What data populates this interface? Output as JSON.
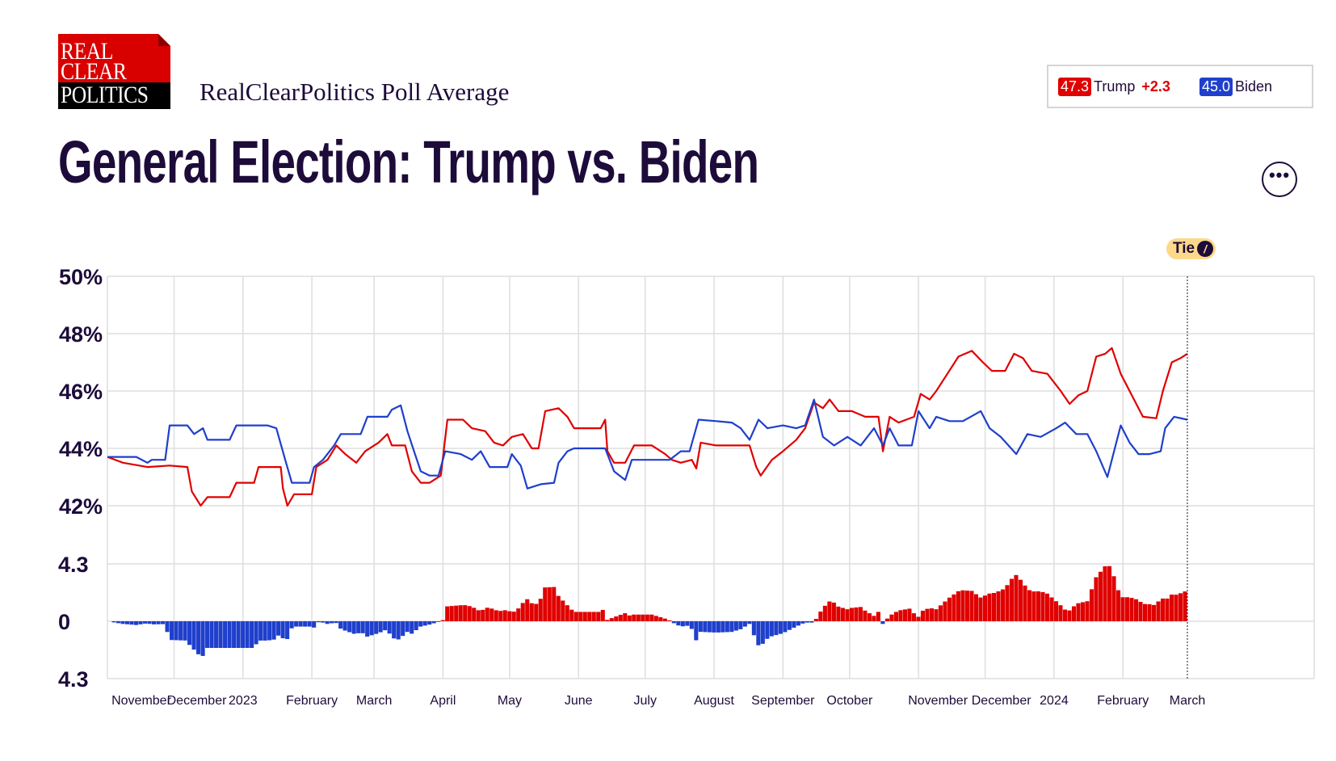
{
  "header": {
    "logo_text": [
      "REAL",
      "CLEAR",
      "POLITICS"
    ],
    "subtitle": "RealClearPolitics Poll Average",
    "title": "General Election: Trump vs. Biden",
    "more_label": "•••",
    "more_icon": "ellipsis-icon"
  },
  "legend": {
    "trump": {
      "value": "47.3",
      "name": "Trump",
      "change": "+2.3",
      "color": "#e00000"
    },
    "biden": {
      "value": "45.0",
      "name": "Biden",
      "color": "#1f3fcc"
    }
  },
  "tie_badge": {
    "label": "Tie",
    "icon": "slash-icon",
    "icon_glyph": "/"
  },
  "chart_data": {
    "type": "line",
    "title": "General Election: Trump vs. Biden",
    "x_unit": "days since 2022-11-01",
    "xlim": [
      0,
      486
    ],
    "ylim": [
      42,
      50
    ],
    "yticks": [
      "50%",
      "48%",
      "46%",
      "44%",
      "42%"
    ],
    "spread_ticks": [
      "4.3",
      "0",
      "4.3"
    ],
    "spread_max": 4.3,
    "grid": true,
    "xticks": [
      {
        "day": 0,
        "label": "November"
      },
      {
        "day": 30,
        "label": "December"
      },
      {
        "day": 61,
        "label": "2023"
      },
      {
        "day": 92,
        "label": "February"
      },
      {
        "day": 120,
        "label": "March"
      },
      {
        "day": 151,
        "label": "April"
      },
      {
        "day": 181,
        "label": "May"
      },
      {
        "day": 212,
        "label": "June"
      },
      {
        "day": 242,
        "label": "July"
      },
      {
        "day": 273,
        "label": "August"
      },
      {
        "day": 304,
        "label": "September"
      },
      {
        "day": 334,
        "label": "October"
      },
      {
        "day": 365,
        "label": "November"
      },
      {
        "day": 395,
        "label": "December"
      },
      {
        "day": 426,
        "label": "2024"
      },
      {
        "day": 457,
        "label": "February"
      },
      {
        "day": 486,
        "label": "March"
      }
    ],
    "series": [
      {
        "name": "Trump",
        "color": "#e00000",
        "points": [
          [
            0,
            43.7
          ],
          [
            7,
            43.5
          ],
          [
            18,
            43.35
          ],
          [
            28,
            43.4
          ],
          [
            36,
            43.35
          ],
          [
            38,
            42.5
          ],
          [
            42,
            42.0
          ],
          [
            45,
            42.3
          ],
          [
            55,
            42.3
          ],
          [
            58,
            42.8
          ],
          [
            66,
            42.8
          ],
          [
            68,
            43.35
          ],
          [
            78,
            43.35
          ],
          [
            79,
            42.6
          ],
          [
            81,
            42.0
          ],
          [
            84,
            42.4
          ],
          [
            92,
            42.4
          ],
          [
            94,
            43.35
          ],
          [
            99,
            43.6
          ],
          [
            103,
            44.1
          ],
          [
            107,
            43.8
          ],
          [
            112,
            43.5
          ],
          [
            116,
            43.9
          ],
          [
            122,
            44.2
          ],
          [
            126,
            44.5
          ],
          [
            128,
            44.1
          ],
          [
            134,
            44.1
          ],
          [
            137,
            43.2
          ],
          [
            141,
            42.8
          ],
          [
            145,
            42.8
          ],
          [
            150,
            43.05
          ],
          [
            153,
            45.0
          ],
          [
            160,
            45.0
          ],
          [
            164,
            44.7
          ],
          [
            170,
            44.6
          ],
          [
            174,
            44.2
          ],
          [
            178,
            44.1
          ],
          [
            182,
            44.4
          ],
          [
            187,
            44.5
          ],
          [
            191,
            44.0
          ],
          [
            194,
            44.0
          ],
          [
            197,
            45.3
          ],
          [
            203,
            45.4
          ],
          [
            207,
            45.1
          ],
          [
            210,
            44.7
          ],
          [
            222,
            44.7
          ],
          [
            224,
            45.0
          ],
          [
            225,
            43.9
          ],
          [
            228,
            43.5
          ],
          [
            233,
            43.5
          ],
          [
            237,
            44.1
          ],
          [
            245,
            44.1
          ],
          [
            251,
            43.8
          ],
          [
            254,
            43.6
          ],
          [
            258,
            43.5
          ],
          [
            263,
            43.6
          ],
          [
            265,
            43.3
          ],
          [
            267,
            44.2
          ],
          [
            274,
            44.1
          ],
          [
            289,
            44.1
          ],
          [
            292,
            43.35
          ],
          [
            294,
            43.05
          ],
          [
            299,
            43.6
          ],
          [
            304,
            43.9
          ],
          [
            310,
            44.3
          ],
          [
            314,
            44.7
          ],
          [
            318,
            45.6
          ],
          [
            322,
            45.4
          ],
          [
            325,
            45.7
          ],
          [
            329,
            45.3
          ],
          [
            335,
            45.3
          ],
          [
            341,
            45.1
          ],
          [
            347,
            45.1
          ],
          [
            349,
            43.9
          ],
          [
            352,
            45.1
          ],
          [
            356,
            44.9
          ],
          [
            363,
            45.1
          ],
          [
            366,
            45.9
          ],
          [
            370,
            45.7
          ],
          [
            373,
            46.0
          ],
          [
            378,
            46.6
          ],
          [
            383,
            47.2
          ],
          [
            389,
            47.4
          ],
          [
            394,
            47.0
          ],
          [
            398,
            46.7
          ],
          [
            404,
            46.7
          ],
          [
            408,
            47.3
          ],
          [
            412,
            47.15
          ],
          [
            416,
            46.7
          ],
          [
            423,
            46.6
          ],
          [
            429,
            46.0
          ],
          [
            433,
            45.55
          ],
          [
            437,
            45.85
          ],
          [
            441,
            46.0
          ],
          [
            445,
            47.2
          ],
          [
            449,
            47.3
          ],
          [
            452,
            47.5
          ],
          [
            456,
            46.6
          ],
          [
            461,
            45.85
          ],
          [
            466,
            45.1
          ],
          [
            472,
            45.05
          ],
          [
            475,
            46.0
          ],
          [
            479,
            47.0
          ],
          [
            483,
            47.15
          ],
          [
            486,
            47.3
          ]
        ]
      },
      {
        "name": "Biden",
        "color": "#1f3fcc",
        "points": [
          [
            0,
            43.7
          ],
          [
            13,
            43.7
          ],
          [
            18,
            43.5
          ],
          [
            20,
            43.6
          ],
          [
            26,
            43.6
          ],
          [
            28,
            44.8
          ],
          [
            36,
            44.8
          ],
          [
            39,
            44.5
          ],
          [
            43,
            44.7
          ],
          [
            45,
            44.3
          ],
          [
            55,
            44.3
          ],
          [
            58,
            44.8
          ],
          [
            72,
            44.8
          ],
          [
            76,
            44.7
          ],
          [
            80,
            43.6
          ],
          [
            83,
            42.8
          ],
          [
            91,
            42.8
          ],
          [
            93,
            43.35
          ],
          [
            97,
            43.6
          ],
          [
            102,
            44.1
          ],
          [
            105,
            44.5
          ],
          [
            114,
            44.5
          ],
          [
            117,
            45.1
          ],
          [
            126,
            45.1
          ],
          [
            128,
            45.35
          ],
          [
            132,
            45.5
          ],
          [
            135,
            44.6
          ],
          [
            138,
            43.9
          ],
          [
            141,
            43.2
          ],
          [
            145,
            43.05
          ],
          [
            149,
            43.05
          ],
          [
            152,
            43.9
          ],
          [
            159,
            43.8
          ],
          [
            164,
            43.6
          ],
          [
            168,
            43.9
          ],
          [
            172,
            43.35
          ],
          [
            180,
            43.35
          ],
          [
            182,
            43.8
          ],
          [
            186,
            43.4
          ],
          [
            189,
            42.6
          ],
          [
            195,
            42.75
          ],
          [
            201,
            42.8
          ],
          [
            203,
            43.5
          ],
          [
            207,
            43.9
          ],
          [
            210,
            44.0
          ],
          [
            224,
            44.0
          ],
          [
            228,
            43.2
          ],
          [
            233,
            42.9
          ],
          [
            236,
            43.6
          ],
          [
            243,
            43.6
          ],
          [
            253,
            43.6
          ],
          [
            258,
            43.9
          ],
          [
            262,
            43.9
          ],
          [
            266,
            45.0
          ],
          [
            274,
            44.95
          ],
          [
            281,
            44.9
          ],
          [
            285,
            44.7
          ],
          [
            289,
            44.3
          ],
          [
            293,
            45.0
          ],
          [
            297,
            44.7
          ],
          [
            304,
            44.8
          ],
          [
            310,
            44.7
          ],
          [
            314,
            44.8
          ],
          [
            318,
            45.7
          ],
          [
            322,
            44.4
          ],
          [
            327,
            44.1
          ],
          [
            333,
            44.4
          ],
          [
            339,
            44.1
          ],
          [
            345,
            44.7
          ],
          [
            349,
            44.1
          ],
          [
            352,
            44.7
          ],
          [
            356,
            44.1
          ],
          [
            362,
            44.1
          ],
          [
            365,
            45.3
          ],
          [
            370,
            44.7
          ],
          [
            373,
            45.1
          ],
          [
            379,
            44.95
          ],
          [
            385,
            44.95
          ],
          [
            393,
            45.3
          ],
          [
            397,
            44.7
          ],
          [
            402,
            44.4
          ],
          [
            409,
            43.8
          ],
          [
            414,
            44.5
          ],
          [
            420,
            44.4
          ],
          [
            427,
            44.7
          ],
          [
            431,
            44.9
          ],
          [
            436,
            44.5
          ],
          [
            441,
            44.5
          ],
          [
            445,
            43.9
          ],
          [
            450,
            43.0
          ],
          [
            452,
            43.6
          ],
          [
            456,
            44.8
          ],
          [
            460,
            44.2
          ],
          [
            464,
            43.8
          ],
          [
            469,
            43.8
          ],
          [
            474,
            43.9
          ],
          [
            476,
            44.7
          ],
          [
            480,
            45.1
          ],
          [
            486,
            45.0
          ]
        ]
      }
    ]
  }
}
